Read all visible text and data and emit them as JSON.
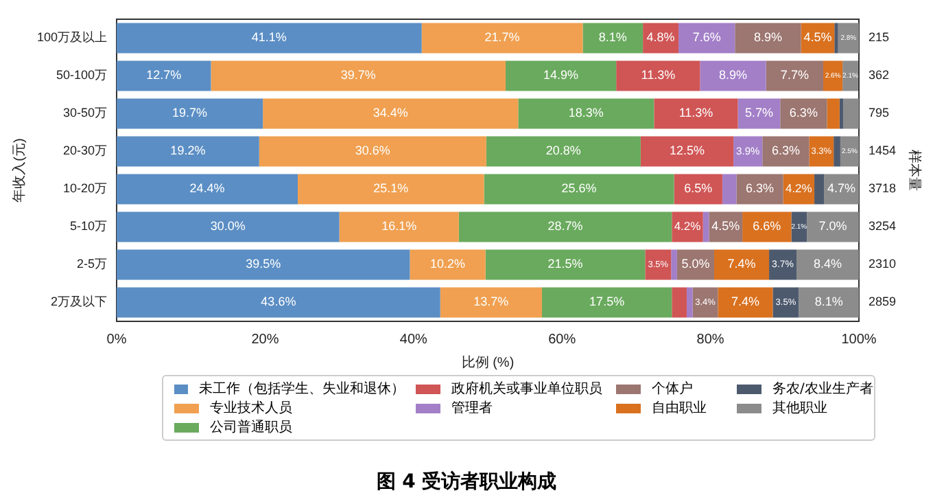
{
  "chart_data": {
    "type": "bar",
    "orientation": "horizontal",
    "stacked": true,
    "title": "图 4 受访者职业构成",
    "xlabel": "比例 (%)",
    "ylabel": "年收入(元)",
    "y2label": "样本量",
    "categories": [
      "100万及以上",
      "50-100万",
      "30-50万",
      "20-30万",
      "10-20万",
      "5-10万",
      "2-5万",
      "2万及以下"
    ],
    "y2_categories": [
      "215",
      "362",
      "795",
      "1454",
      "3718",
      "3254",
      "2310",
      "2859"
    ],
    "xlim": [
      0,
      100
    ],
    "xticks": [
      {
        "value": 0,
        "label": "0%"
      },
      {
        "value": 20,
        "label": "20%"
      },
      {
        "value": 40,
        "label": "40%"
      },
      {
        "value": 60,
        "label": "60%"
      },
      {
        "value": 80,
        "label": "80%"
      },
      {
        "value": 100,
        "label": "100%"
      }
    ],
    "grid": false,
    "legend": "bottom",
    "series": [
      {
        "name": "未工作（包括学生、失业和退休）",
        "color": "#5b8ec4",
        "values": [
          41.1,
          12.7,
          19.7,
          19.2,
          24.4,
          30.0,
          39.5,
          43.6
        ],
        "value_labels": [
          "41.1%",
          "12.7%",
          "19.7%",
          "19.2%",
          "24.4%",
          "30.0%",
          "39.5%",
          "43.6%"
        ]
      },
      {
        "name": "专业技术人员",
        "color": "#f0a050",
        "values": [
          21.7,
          39.7,
          34.4,
          30.6,
          25.1,
          16.1,
          10.2,
          13.7
        ],
        "value_labels": [
          "21.7%",
          "39.7%",
          "34.4%",
          "30.6%",
          "25.1%",
          "16.1%",
          "10.2%",
          "13.7%"
        ]
      },
      {
        "name": "公司普通职员",
        "color": "#6aaa5e",
        "values": [
          8.1,
          14.9,
          18.3,
          20.8,
          25.6,
          28.7,
          21.5,
          17.5
        ],
        "value_labels": [
          "8.1%",
          "14.9%",
          "18.3%",
          "20.8%",
          "25.6%",
          "28.7%",
          "21.5%",
          "17.5%"
        ]
      },
      {
        "name": "政府机关或事业单位职员",
        "color": "#d05555",
        "values": [
          4.8,
          11.3,
          11.3,
          12.5,
          6.5,
          4.2,
          3.5,
          2.0
        ],
        "value_labels": [
          "4.8%",
          "11.3%",
          "11.3%",
          "12.5%",
          "6.5%",
          "4.2%",
          "3.5%",
          null
        ]
      },
      {
        "name": "管理者",
        "color": "#a37fc8",
        "values": [
          7.6,
          8.9,
          5.7,
          3.9,
          1.9,
          0.8,
          0.8,
          0.8
        ],
        "value_labels": [
          "7.6%",
          "8.9%",
          "5.7%",
          "3.9%",
          null,
          null,
          null,
          null
        ]
      },
      {
        "name": "个体户",
        "color": "#9c7670",
        "values": [
          8.9,
          7.7,
          6.3,
          6.3,
          6.3,
          4.5,
          5.0,
          3.4
        ],
        "value_labels": [
          "8.9%",
          "7.7%",
          "6.3%",
          "6.3%",
          "6.3%",
          "4.5%",
          "5.0%",
          "3.4%"
        ]
      },
      {
        "name": "自由职业",
        "color": "#d9711f",
        "values": [
          4.5,
          2.6,
          1.7,
          3.3,
          4.2,
          6.6,
          7.4,
          7.4
        ],
        "value_labels": [
          "4.5%",
          "2.6%",
          null,
          "3.3%",
          "4.2%",
          "6.6%",
          "7.4%",
          "7.4%"
        ]
      },
      {
        "name": "务农/农业生产者",
        "color": "#4d5a6e",
        "values": [
          0.5,
          null,
          0.5,
          0.9,
          1.3,
          2.1,
          3.7,
          3.5
        ],
        "value_labels": [
          null,
          null,
          null,
          null,
          null,
          "2.1%",
          "3.7%",
          "3.5%"
        ]
      },
      {
        "name": "其他职业",
        "color": "#8c8c8c",
        "values": [
          2.8,
          2.1,
          2.1,
          2.5,
          4.7,
          7.0,
          8.4,
          8.1
        ],
        "value_labels": [
          "2.8%",
          "2.1%",
          null,
          "2.5%",
          "4.7%",
          "7.0%",
          "8.4%",
          "8.1%"
        ]
      }
    ]
  }
}
